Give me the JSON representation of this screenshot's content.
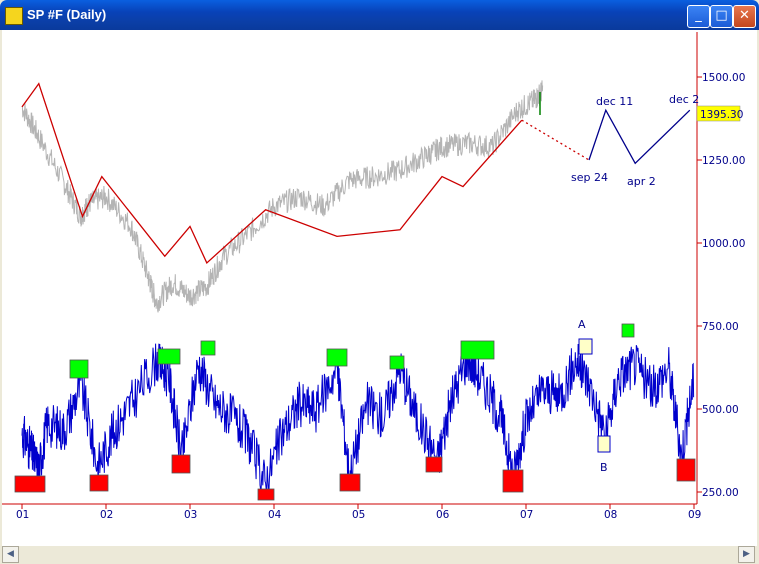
{
  "window": {
    "title": "SP #F (Daily)"
  },
  "chart_data": [
    {
      "type": "line",
      "title": "SP #F (Daily)",
      "yticks": [
        "1500.00",
        "1250.00",
        "1000.00",
        "750.00",
        "500.00",
        "250.00"
      ],
      "ytick_values": [
        1500,
        1250,
        1000,
        750,
        500,
        250
      ],
      "xticks": [
        "01",
        "02",
        "03",
        "04",
        "05",
        "06",
        "07",
        "08",
        "09"
      ],
      "last_price": "1395.30",
      "series": [
        {
          "color": "#b4b4b4",
          "x": [
            2001.0,
            2001.2,
            2001.5,
            2001.7,
            2001.8,
            2002.0,
            2002.3,
            2002.5,
            2002.6,
            2002.8,
            2003.0,
            2003.2,
            2003.4,
            2003.7,
            2004.0,
            2004.3,
            2004.6,
            2004.9,
            2005.2,
            2005.5,
            2005.8,
            2006.0,
            2006.3,
            2006.6,
            2006.9,
            2007.1,
            2007.2
          ],
          "y": [
            1410,
            1320,
            1180,
            1080,
            1120,
            1140,
            1050,
            900,
            820,
            880,
            840,
            870,
            960,
            1030,
            1110,
            1140,
            1110,
            1190,
            1200,
            1220,
            1260,
            1290,
            1300,
            1290,
            1400,
            1430,
            1460
          ]
        },
        {
          "color": "#cc0000",
          "x": [
            2001.0,
            2001.2,
            2001.72,
            2001.95,
            2002.7,
            2003.0,
            2003.2,
            2003.9,
            2004.75,
            2005.5,
            2006.0,
            2006.25,
            2006.95
          ],
          "y": [
            1410,
            1480,
            1080,
            1200,
            960,
            1050,
            940,
            1100,
            1020,
            1040,
            1200,
            1170,
            1370
          ]
        },
        {
          "color": "#cc0000",
          "x": [
            2006.95,
            2007.75
          ],
          "y": [
            1370,
            1250
          ]
        },
        {
          "color": "#00008b",
          "x": [
            2007.75,
            2007.95,
            2008.3,
            2008.95
          ],
          "y": [
            1250,
            1400,
            1240,
            1400
          ]
        }
      ],
      "annotations": [
        "dec 11",
        "dec 2",
        "sep 24",
        "apr 2"
      ]
    },
    {
      "type": "line",
      "series": [
        {
          "color": "#0000cc",
          "x": [
            2001.0,
            2001.1,
            2001.2,
            2001.3,
            2001.5,
            2001.7,
            2001.9,
            2002.1,
            2002.3,
            2002.6,
            2002.75,
            2002.9,
            2003.1,
            2003.3,
            2003.5,
            2003.7,
            2003.9,
            2004.1,
            2004.3,
            2004.5,
            2004.75,
            2004.9,
            2005.1,
            2005.3,
            2005.5,
            2005.7,
            2005.95,
            2006.1,
            2006.3,
            2006.5,
            2006.7,
            2006.85,
            2007.0,
            2007.2,
            2007.4,
            2007.6,
            2007.75,
            2007.95,
            2008.1,
            2008.3,
            2008.5,
            2008.7,
            2008.85,
            2009.0
          ],
          "y": [
            430,
            380,
            320,
            460,
            440,
            580,
            330,
            440,
            520,
            650,
            600,
            360,
            640,
            520,
            480,
            410,
            280,
            430,
            520,
            500,
            630,
            300,
            520,
            480,
            630,
            480,
            350,
            520,
            660,
            580,
            480,
            300,
            470,
            560,
            540,
            650,
            580,
            420,
            600,
            640,
            560,
            630,
            360,
            600
          ]
        }
      ],
      "annotations": [
        "A",
        "B"
      ]
    }
  ]
}
